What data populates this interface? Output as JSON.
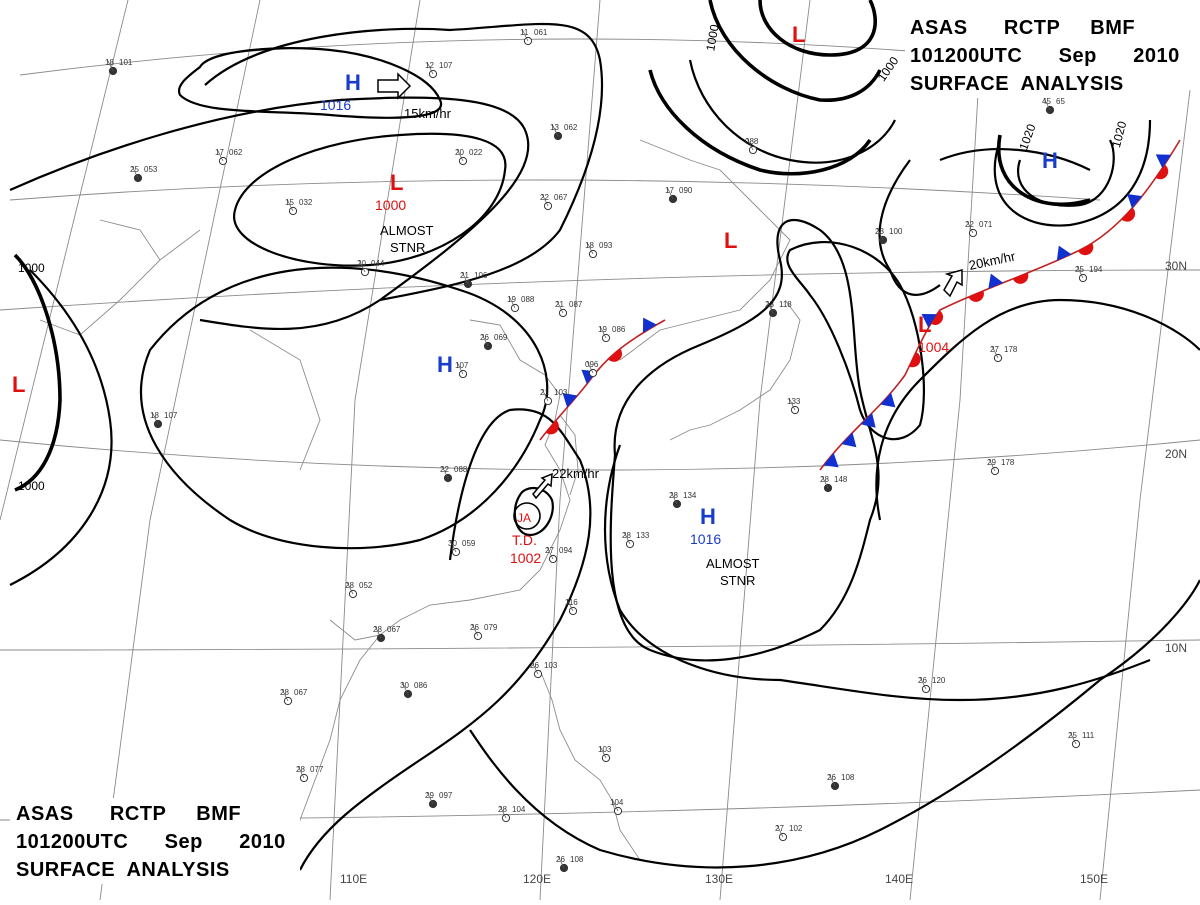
{
  "header": {
    "line1": "ASAS      RCTP     BMF",
    "line2": "101200UTC      Sep      2010",
    "line3": "SURFACE  ANALYSIS"
  },
  "colors": {
    "high": "#1a3ccc",
    "low": "#e01010",
    "cold_front": "#1030d0",
    "warm_front": "#e01010",
    "isobar": "#000000",
    "grid": "#8a8a8a"
  },
  "lon_labels": [
    "110E",
    "120E",
    "130E",
    "140E",
    "150E"
  ],
  "lat_labels": [
    "30N",
    "20N",
    "10N"
  ],
  "isobar_labels": [
    "1000",
    "1000",
    "1000",
    "1000",
    "1020",
    "1020"
  ],
  "pressure_centers": [
    {
      "type": "H",
      "value": "1016",
      "note": ""
    },
    {
      "type": "L",
      "value": "1000",
      "note": "ALMOST STNR"
    },
    {
      "type": "L",
      "value": "",
      "note": ""
    },
    {
      "type": "L",
      "value": "",
      "note": ""
    },
    {
      "type": "H",
      "value": "",
      "note": ""
    },
    {
      "type": "H",
      "value": "",
      "note": ""
    },
    {
      "type": "L",
      "value": "",
      "note": ""
    },
    {
      "type": "L",
      "value": "1004",
      "note": ""
    },
    {
      "type": "H",
      "value": "1016",
      "note": "ALMOST STNR"
    }
  ],
  "tropical_depression": {
    "label": "T.D.",
    "value": "1002",
    "code": "JA"
  },
  "motions": [
    {
      "text": "15km/hr"
    },
    {
      "text": "22km/hr"
    },
    {
      "text": "20km/hr"
    }
  ],
  "stations": [
    {
      "t": "18",
      "p": "101"
    },
    {
      "t": "12",
      "p": "107"
    },
    {
      "t": "11",
      "p": "061"
    },
    {
      "t": "13",
      "p": "062"
    },
    {
      "t": "20",
      "p": "022"
    },
    {
      "t": "17",
      "p": "062"
    },
    {
      "t": "25",
      "p": "053"
    },
    {
      "t": "15",
      "p": "032"
    },
    {
      "t": "22",
      "p": "067"
    },
    {
      "t": "17",
      "p": "090"
    },
    {
      "t": "18",
      "p": "093"
    },
    {
      "t": "20",
      "p": "044"
    },
    {
      "t": "21",
      "p": "106"
    },
    {
      "t": "19",
      "p": "088"
    },
    {
      "t": "21",
      "p": "087"
    },
    {
      "t": "26",
      "p": "069"
    },
    {
      "t": "19",
      "p": "086"
    },
    {
      "t": "107",
      "p": ""
    },
    {
      "t": "18",
      "p": "107"
    },
    {
      "t": "21",
      "p": "103"
    },
    {
      "t": "096",
      "p": ""
    },
    {
      "t": "22",
      "p": "088"
    },
    {
      "t": "27",
      "p": "094"
    },
    {
      "t": "30",
      "p": "059"
    },
    {
      "t": "28",
      "p": "134"
    },
    {
      "t": "28",
      "p": "133"
    },
    {
      "t": "28",
      "p": "052"
    },
    {
      "t": "28",
      "p": "067"
    },
    {
      "t": "26",
      "p": "079"
    },
    {
      "t": "116",
      "p": ""
    },
    {
      "t": "30",
      "p": "086"
    },
    {
      "t": "28",
      "p": "067"
    },
    {
      "t": "28",
      "p": "077"
    },
    {
      "t": "29",
      "p": "097"
    },
    {
      "t": "28",
      "p": "104"
    },
    {
      "t": "26",
      "p": "103"
    },
    {
      "t": "26",
      "p": "108"
    },
    {
      "t": "103",
      "p": ""
    },
    {
      "t": "104",
      "p": ""
    },
    {
      "t": "28",
      "p": "148"
    },
    {
      "t": "29",
      "p": "178"
    },
    {
      "t": "26",
      "p": "120"
    },
    {
      "t": "26",
      "p": "108"
    },
    {
      "t": "27",
      "p": "102"
    },
    {
      "t": "25",
      "p": "111"
    },
    {
      "t": "23",
      "p": "100"
    },
    {
      "t": "22",
      "p": "071"
    },
    {
      "t": "25",
      "p": "194"
    },
    {
      "t": "23",
      "p": "118"
    },
    {
      "t": "133",
      "p": ""
    },
    {
      "t": "088",
      "p": ""
    },
    {
      "t": "45",
      "p": "65"
    },
    {
      "t": "27",
      "p": "178"
    }
  ]
}
